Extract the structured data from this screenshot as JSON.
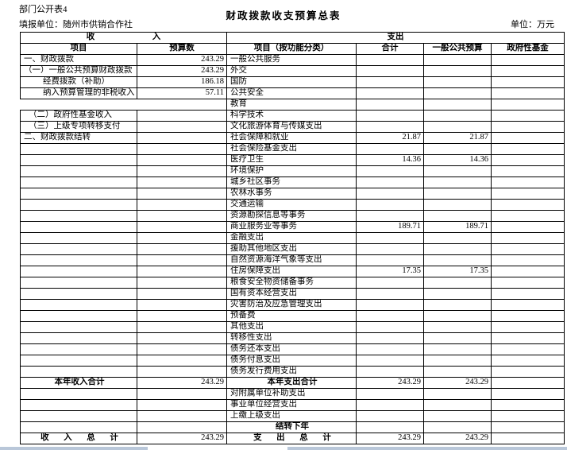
{
  "page": {
    "doc_label": "部门公开表4",
    "title": "财政拨款收支预算总表",
    "report_unit": "填报单位：随州市供销合作社",
    "unit_note": "单位：万元"
  },
  "colors": {
    "border": "#000000",
    "scrollbar": "#b9c7d9"
  },
  "table": {
    "income_header": "收 入",
    "expense_header": "支出",
    "columns": {
      "income_item": "项目",
      "income_budget": "预算数",
      "expense_item": "项目（按功能分类）",
      "total": "合计",
      "general_budget": "一般公共预算",
      "gov_fund": "政府性基金"
    },
    "rows": [
      {
        "income": "一、财政拨款",
        "income_value": "243.29",
        "expense": "一般公共服务",
        "total": "",
        "general": "",
        "fund": ""
      },
      {
        "income": "（一）一般公共预算财政拨款",
        "income_value": "243.29",
        "expense": "外交",
        "total": "",
        "general": "",
        "fund": ""
      },
      {
        "income": "经费拨款（补助）",
        "income_class": "ind2",
        "income_value": "186.18",
        "expense": "国防",
        "total": "",
        "general": "",
        "fund": ""
      },
      {
        "income": "纳入预算管理的非税收入",
        "income_class": "ind2",
        "income_value": "57.11",
        "expense": "公共安全",
        "total": "",
        "general": "",
        "fund": ""
      },
      {
        "income": "",
        "income_class": "gap",
        "income_value": "",
        "expense": "教育",
        "total": "",
        "general": "",
        "fund": ""
      },
      {
        "income": "（二）政府性基金收入",
        "income_class": "ind1",
        "income_value": "",
        "expense": "科学技术",
        "total": "",
        "general": "",
        "fund": ""
      },
      {
        "income": "（三）上级专项转移支付",
        "income_class": "ind1",
        "income_value": "",
        "expense": "文化旅游体育与传媒支出",
        "total": "",
        "general": "",
        "fund": ""
      },
      {
        "income": "二、财政拨款结转",
        "income_value": "",
        "expense": "社会保障和就业",
        "total": "21.87",
        "general": "21.87",
        "fund": ""
      },
      {
        "income": "",
        "income_value": "",
        "expense": "社会保险基金支出",
        "total": "",
        "general": "",
        "fund": ""
      },
      {
        "income": "",
        "income_value": "",
        "expense": "医疗卫生",
        "total": "14.36",
        "general": "14.36",
        "fund": ""
      },
      {
        "income": "",
        "income_value": "",
        "expense": "环境保护",
        "total": "",
        "general": "",
        "fund": ""
      },
      {
        "income": "",
        "income_value": "",
        "expense": "城乡社区事务",
        "total": "",
        "general": "",
        "fund": ""
      },
      {
        "income": "",
        "income_value": "",
        "expense": "农林水事务",
        "total": "",
        "general": "",
        "fund": ""
      },
      {
        "income": "",
        "income_value": "",
        "expense": "交通运输",
        "total": "",
        "general": "",
        "fund": ""
      },
      {
        "income": "",
        "income_value": "",
        "expense": "资源勘探信息等事务",
        "total": "",
        "general": "",
        "fund": ""
      },
      {
        "income": "",
        "income_value": "",
        "expense": "商业服务业等事务",
        "total": "189.71",
        "general": "189.71",
        "fund": ""
      },
      {
        "income": "",
        "income_value": "",
        "expense": "金融支出",
        "total": "",
        "general": "",
        "fund": ""
      },
      {
        "income": "",
        "income_value": "",
        "expense": "援助其他地区支出",
        "total": "",
        "general": "",
        "fund": ""
      },
      {
        "income": "",
        "income_value": "",
        "expense": "自然资源海洋气象等支出",
        "total": "",
        "general": "",
        "fund": ""
      },
      {
        "income": "",
        "income_value": "",
        "expense": "住房保障支出",
        "total": "17.35",
        "general": "17.35",
        "fund": ""
      },
      {
        "income": "",
        "income_value": "",
        "expense": "粮食安全物资储备事务",
        "total": "",
        "general": "",
        "fund": ""
      },
      {
        "income": "",
        "income_value": "",
        "expense": "国有资本经营支出",
        "total": "",
        "general": "",
        "fund": ""
      },
      {
        "income": "",
        "income_value": "",
        "expense": "灾害防治及应急管理支出",
        "total": "",
        "general": "",
        "fund": ""
      },
      {
        "income": "",
        "income_value": "",
        "expense": "预备费",
        "total": "",
        "general": "",
        "fund": ""
      },
      {
        "income": "",
        "income_value": "",
        "expense": "其他支出",
        "total": "",
        "general": "",
        "fund": ""
      },
      {
        "income": "",
        "income_value": "",
        "expense": "转移性支出",
        "total": "",
        "general": "",
        "fund": ""
      },
      {
        "income": "",
        "income_value": "",
        "expense": "债务还本支出",
        "total": "",
        "general": "",
        "fund": ""
      },
      {
        "income": "",
        "income_value": "",
        "expense": "债务付息支出",
        "total": "",
        "general": "",
        "fund": ""
      },
      {
        "income": "",
        "income_value": "",
        "expense": "债务发行费用支出",
        "total": "",
        "general": "",
        "fund": ""
      },
      {
        "income": "本年收入合计",
        "income_class": "ctr",
        "income_value": "243.29",
        "expense": "本年支出合计",
        "expense_class": "ctr",
        "total": "243.29",
        "general": "243.29",
        "fund": ""
      },
      {
        "income": "",
        "income_value": "",
        "expense": "对附属单位补助支出",
        "total": "",
        "general": "",
        "fund": ""
      },
      {
        "income": "",
        "income_value": "",
        "expense": "事业单位经营支出",
        "total": "",
        "general": "",
        "fund": ""
      },
      {
        "income": "",
        "income_value": "",
        "expense": "上缴上级支出",
        "total": "",
        "general": "",
        "fund": ""
      },
      {
        "income": "",
        "income_value": "",
        "expense": "结转下年",
        "expense_class": "ctr",
        "total": "",
        "general": "",
        "fund": ""
      },
      {
        "income": "收 入 总 计",
        "income_class": "ctrsp",
        "income_value": "243.29",
        "expense": "支 出 总 计",
        "expense_class": "ctrsp",
        "total": "243.29",
        "general": "243.29",
        "fund": ""
      }
    ]
  }
}
